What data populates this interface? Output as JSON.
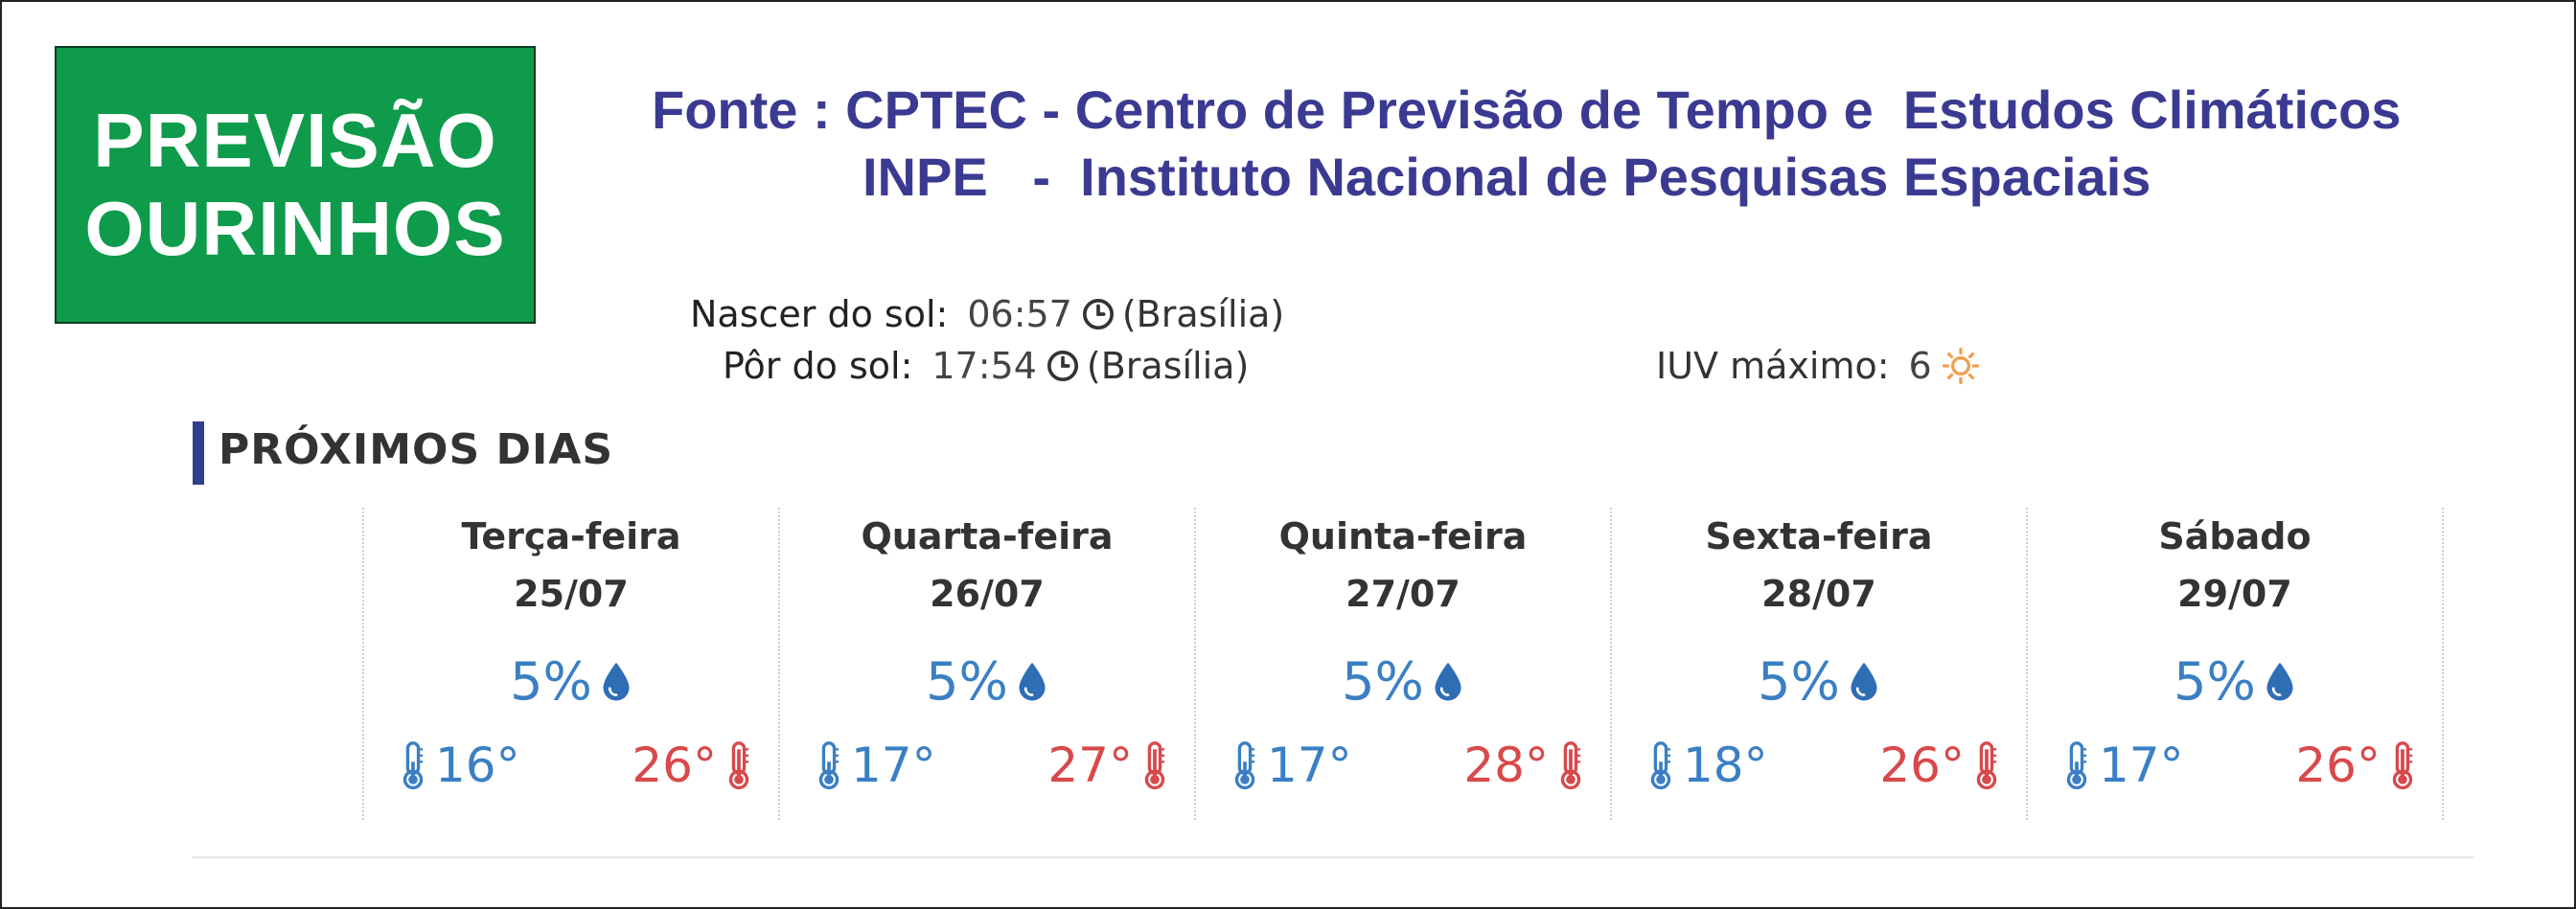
{
  "logo": {
    "line1": "PREVISÃO",
    "line2": "OURINHOS",
    "bg_color": "#0e9b4b"
  },
  "source": {
    "line1": "Fonte : CPTEC - Centro de Previsão de Tempo e  Estudos Climáticos",
    "line2": "INPE   -  Instituto Nacional de Pesquisas Espaciais",
    "color": "#3b3a92"
  },
  "sun": {
    "rise_label": "Nascer do sol:",
    "rise_time": "06:57",
    "rise_zone": "(Brasília)",
    "set_label": "Pôr do sol:",
    "set_time": "17:54",
    "set_zone": "(Brasília)",
    "clock_icon": "clock-icon"
  },
  "iuv": {
    "label": "IUV máximo:",
    "value": "6",
    "icon": "sun-icon",
    "icon_color": "#f0a050"
  },
  "section": {
    "title": "PRÓXIMOS DIAS",
    "accent": "#2d3e8c"
  },
  "days": [
    {
      "name": "Terça-feira",
      "date": "25/07",
      "rain": "5%",
      "min": "16°",
      "max": "26°"
    },
    {
      "name": "Quarta-feira",
      "date": "26/07",
      "rain": "5%",
      "min": "17°",
      "max": "27°"
    },
    {
      "name": "Quinta-feira",
      "date": "27/07",
      "rain": "5%",
      "min": "17°",
      "max": "28°"
    },
    {
      "name": "Sexta-feira",
      "date": "28/07",
      "rain": "5%",
      "min": "18°",
      "max": "26°"
    },
    {
      "name": "Sábado",
      "date": "29/07",
      "rain": "5%",
      "min": "17°",
      "max": "26°"
    }
  ],
  "colors": {
    "cold": "#3a7fc4",
    "hot": "#d9484a"
  }
}
